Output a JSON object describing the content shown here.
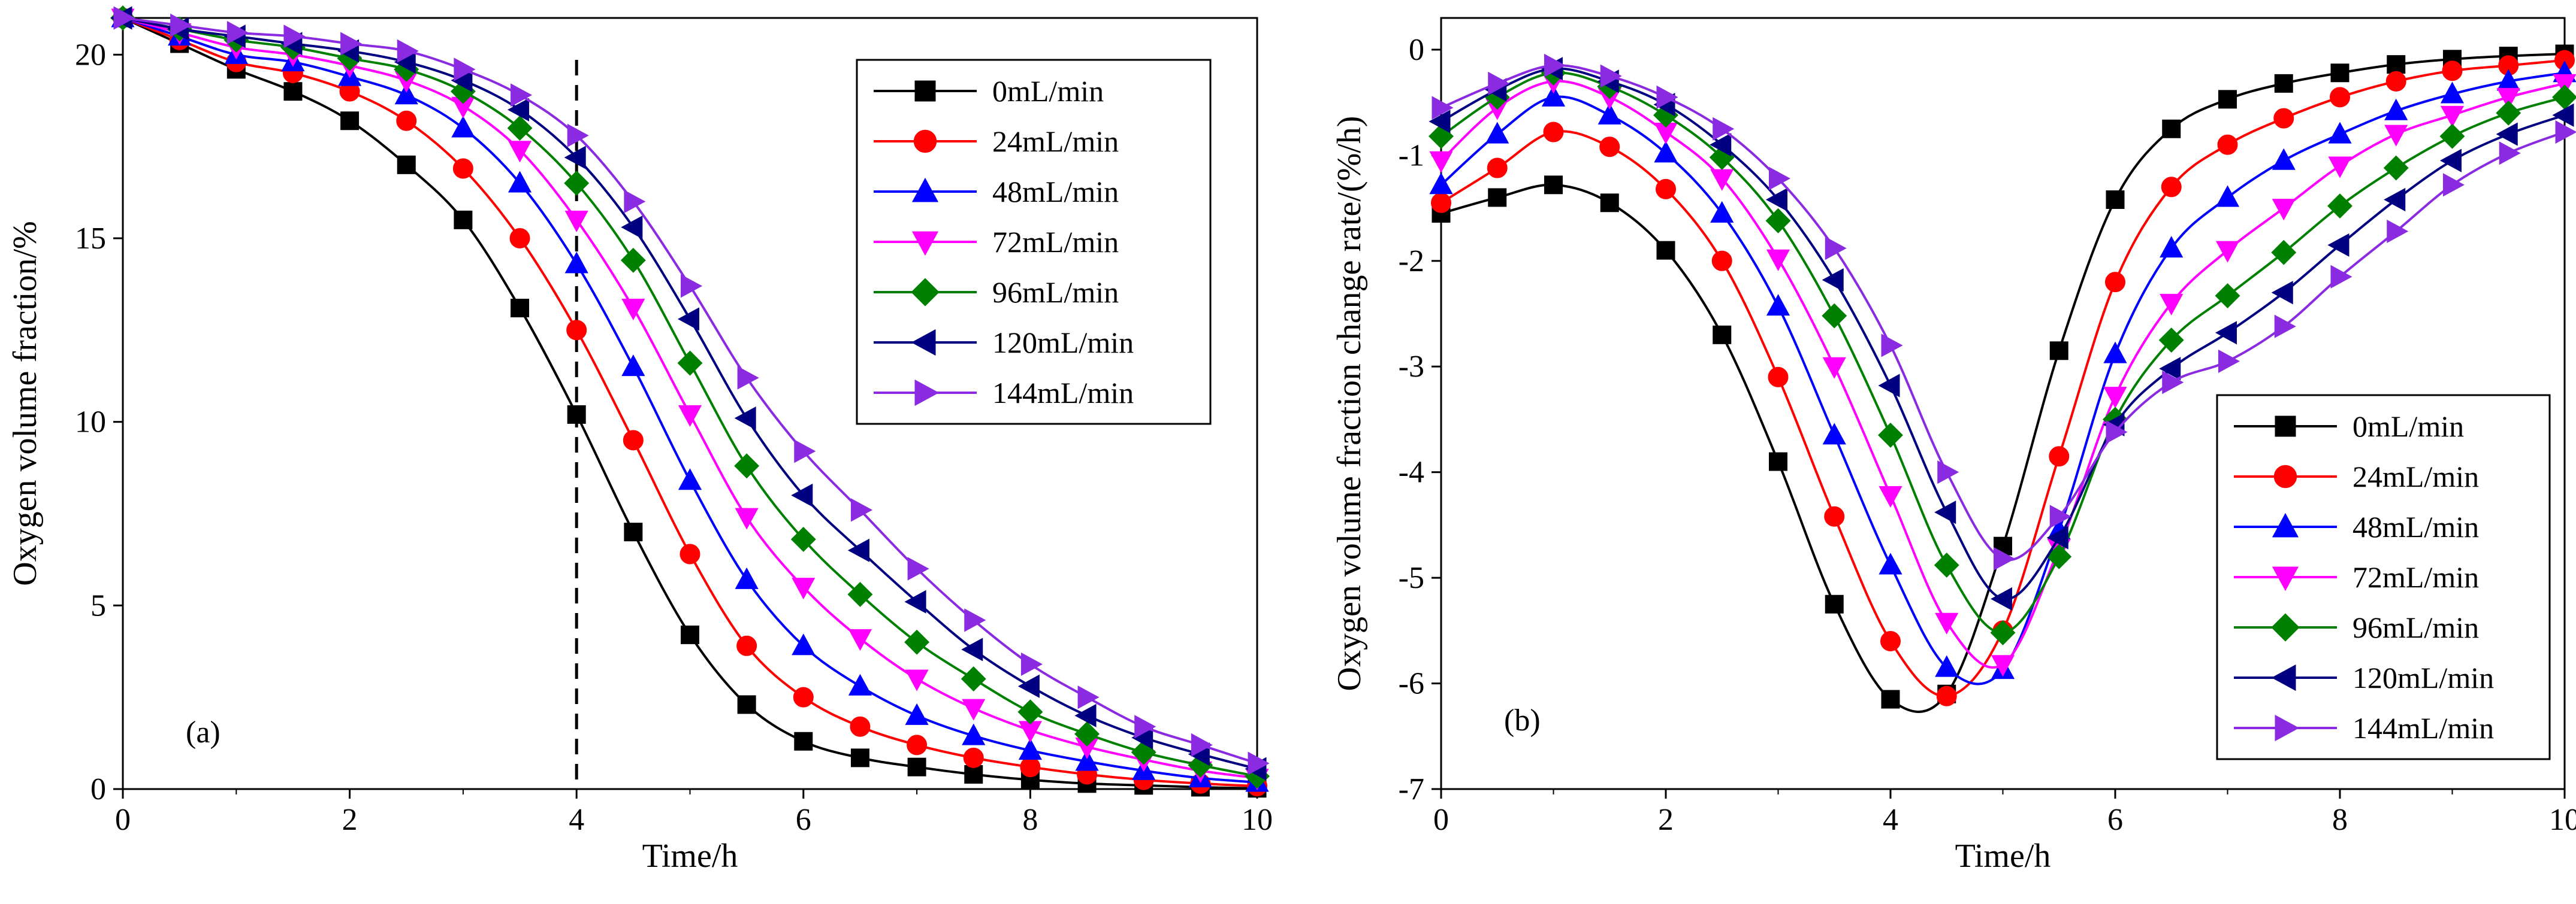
{
  "chart_data": [
    {
      "type": "line",
      "panel_label": "(a)",
      "xlabel": "Time/h",
      "ylabel": "Oxygen volume fraction/%",
      "xlim": [
        0,
        10
      ],
      "ylim": [
        0,
        21
      ],
      "xticks": [
        "0",
        "2",
        "4",
        "6",
        "8",
        "10"
      ],
      "yticks": [
        "0",
        "5",
        "10",
        "15",
        "20"
      ],
      "reference_line": {
        "x": 4,
        "style": "dashed"
      },
      "legend_position": "top-right",
      "x": [
        0,
        0.5,
        1,
        1.5,
        2,
        2.5,
        3,
        3.5,
        4,
        4.5,
        5,
        5.5,
        6,
        6.5,
        7,
        7.5,
        8,
        8.5,
        9,
        9.5,
        10
      ],
      "series": [
        {
          "name": "0mL/min",
          "color": "#000000",
          "marker": "square",
          "values": [
            21.0,
            20.3,
            19.6,
            19.0,
            18.2,
            17.0,
            15.5,
            13.1,
            10.2,
            7.0,
            4.2,
            2.3,
            1.3,
            0.85,
            0.6,
            0.4,
            0.25,
            0.15,
            0.1,
            0.05,
            0.02
          ]
        },
        {
          "name": "24mL/min",
          "color": "#ff0000",
          "marker": "circle",
          "values": [
            21.0,
            20.4,
            19.8,
            19.5,
            19.0,
            18.2,
            16.9,
            15.0,
            12.5,
            9.5,
            6.4,
            3.9,
            2.5,
            1.7,
            1.2,
            0.85,
            0.6,
            0.4,
            0.25,
            0.15,
            0.08
          ]
        },
        {
          "name": "48mL/min",
          "color": "#0000ff",
          "marker": "triangle-up",
          "values": [
            21.0,
            20.5,
            20.0,
            19.8,
            19.4,
            18.9,
            18.0,
            16.5,
            14.3,
            11.5,
            8.4,
            5.7,
            3.9,
            2.8,
            2.0,
            1.45,
            1.05,
            0.75,
            0.5,
            0.3,
            0.18
          ]
        },
        {
          "name": "72mL/min",
          "color": "#ff00ff",
          "marker": "triangle-down",
          "values": [
            21.0,
            20.6,
            20.2,
            20.0,
            19.7,
            19.3,
            18.6,
            17.4,
            15.5,
            13.1,
            10.2,
            7.4,
            5.5,
            4.1,
            3.0,
            2.2,
            1.6,
            1.15,
            0.8,
            0.5,
            0.3
          ]
        },
        {
          "name": "96mL/min",
          "color": "#008000",
          "marker": "diamond",
          "values": [
            21.0,
            20.7,
            20.4,
            20.2,
            19.9,
            19.6,
            19.0,
            18.0,
            16.5,
            14.4,
            11.6,
            8.8,
            6.8,
            5.3,
            4.0,
            3.0,
            2.1,
            1.5,
            1.0,
            0.65,
            0.35
          ]
        },
        {
          "name": "120mL/min",
          "color": "#000080",
          "marker": "triangle-left",
          "values": [
            21.0,
            20.7,
            20.5,
            20.3,
            20.1,
            19.8,
            19.3,
            18.5,
            17.2,
            15.3,
            12.8,
            10.1,
            8.0,
            6.5,
            5.1,
            3.8,
            2.8,
            2.0,
            1.4,
            0.95,
            0.55
          ]
        },
        {
          "name": "144mL/min",
          "color": "#8a2be2",
          "marker": "triangle-right",
          "values": [
            21.0,
            20.8,
            20.6,
            20.5,
            20.3,
            20.1,
            19.6,
            18.9,
            17.8,
            16.0,
            13.7,
            11.2,
            9.2,
            7.6,
            6.0,
            4.6,
            3.4,
            2.5,
            1.7,
            1.2,
            0.7
          ]
        }
      ]
    },
    {
      "type": "line",
      "panel_label": "(b)",
      "xlabel": "Time/h",
      "ylabel": "Oxygen volume fraction change rate/(%/h)",
      "xlim": [
        0,
        10
      ],
      "ylim": [
        -7,
        0.3
      ],
      "xticks": [
        "0",
        "2",
        "4",
        "6",
        "8",
        "10"
      ],
      "yticks": [
        "0",
        "-1",
        "-2",
        "-3",
        "-4",
        "-5",
        "-6",
        "-7"
      ],
      "legend_position": "bottom-right",
      "x": [
        0,
        0.5,
        1,
        1.5,
        2,
        2.5,
        3,
        3.5,
        4,
        4.5,
        5,
        5.5,
        6,
        6.5,
        7,
        7.5,
        8,
        8.5,
        9,
        9.5,
        10
      ],
      "series": [
        {
          "name": "0mL/min",
          "color": "#000000",
          "marker": "square",
          "values": [
            -1.55,
            -1.4,
            -1.28,
            -1.45,
            -1.9,
            -2.7,
            -3.9,
            -5.25,
            -6.15,
            -6.1,
            -4.7,
            -2.85,
            -1.42,
            -0.75,
            -0.47,
            -0.32,
            -0.22,
            -0.14,
            -0.09,
            -0.06,
            -0.04
          ]
        },
        {
          "name": "24mL/min",
          "color": "#ff0000",
          "marker": "circle",
          "values": [
            -1.45,
            -1.12,
            -0.78,
            -0.92,
            -1.32,
            -2.0,
            -3.1,
            -4.42,
            -5.6,
            -6.12,
            -5.5,
            -3.85,
            -2.2,
            -1.3,
            -0.9,
            -0.65,
            -0.45,
            -0.3,
            -0.2,
            -0.15,
            -0.1
          ]
        },
        {
          "name": "48mL/min",
          "color": "#0000ff",
          "marker": "triangle-up",
          "values": [
            -1.28,
            -0.8,
            -0.45,
            -0.62,
            -0.98,
            -1.55,
            -2.43,
            -3.65,
            -4.88,
            -5.85,
            -5.87,
            -4.55,
            -2.88,
            -1.88,
            -1.4,
            -1.05,
            -0.8,
            -0.58,
            -0.42,
            -0.3,
            -0.22
          ]
        },
        {
          "name": "72mL/min",
          "color": "#ff00ff",
          "marker": "triangle-down",
          "values": [
            -1.05,
            -0.55,
            -0.3,
            -0.45,
            -0.78,
            -1.22,
            -1.98,
            -3.0,
            -4.22,
            -5.42,
            -5.82,
            -4.72,
            -3.28,
            -2.4,
            -1.9,
            -1.5,
            -1.1,
            -0.8,
            -0.62,
            -0.45,
            -0.32
          ]
        },
        {
          "name": "96mL/min",
          "color": "#008000",
          "marker": "diamond",
          "values": [
            -0.82,
            -0.45,
            -0.22,
            -0.35,
            -0.62,
            -1.02,
            -1.62,
            -2.52,
            -3.65,
            -4.88,
            -5.52,
            -4.8,
            -3.5,
            -2.75,
            -2.33,
            -1.92,
            -1.48,
            -1.12,
            -0.82,
            -0.6,
            -0.45
          ]
        },
        {
          "name": "120mL/min",
          "color": "#000080",
          "marker": "triangle-left",
          "values": [
            -0.68,
            -0.38,
            -0.18,
            -0.3,
            -0.52,
            -0.9,
            -1.42,
            -2.18,
            -3.18,
            -4.38,
            -5.2,
            -4.62,
            -3.55,
            -3.02,
            -2.68,
            -2.3,
            -1.85,
            -1.42,
            -1.05,
            -0.8,
            -0.62
          ]
        },
        {
          "name": "144mL/min",
          "color": "#8a2be2",
          "marker": "triangle-right",
          "values": [
            -0.55,
            -0.32,
            -0.15,
            -0.25,
            -0.45,
            -0.75,
            -1.22,
            -1.88,
            -2.8,
            -4.0,
            -4.82,
            -4.42,
            -3.62,
            -3.15,
            -2.95,
            -2.62,
            -2.15,
            -1.72,
            -1.28,
            -0.98,
            -0.78
          ]
        }
      ]
    }
  ]
}
